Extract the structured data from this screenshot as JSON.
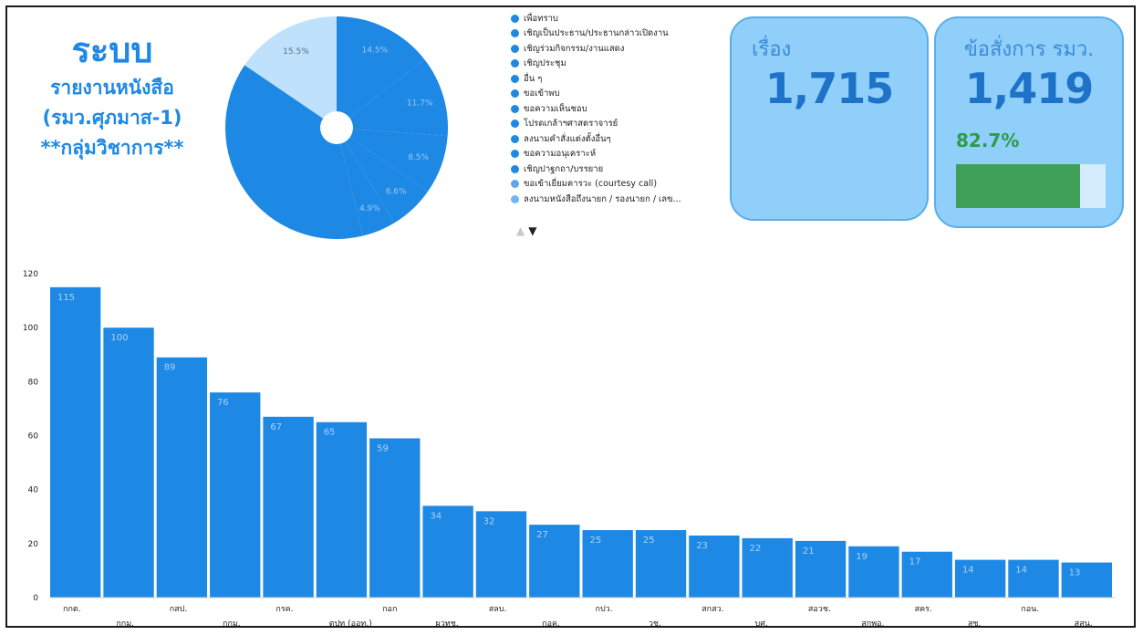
{
  "title": {
    "main": "ระบบ",
    "line1": "รายงานหนังสือ",
    "line2": "(รมว.ศุภมาส-1)",
    "line3": "**กลุ่มวิชาการ**"
  },
  "legend": {
    "items": [
      {
        "label": "เพื่อทราบ",
        "color": "#1e88e5"
      },
      {
        "label": "เชิญเป็นประธาน/ประธานกล่าวเปิดงาน",
        "color": "#1e88e5"
      },
      {
        "label": "เชิญร่วมกิจกรรม/งานแสดง",
        "color": "#1e88e5"
      },
      {
        "label": "เชิญประชุม",
        "color": "#1e88e5"
      },
      {
        "label": "อื่น ๆ",
        "color": "#1e88e5"
      },
      {
        "label": "ขอเข้าพบ",
        "color": "#1e88e5"
      },
      {
        "label": "ขอความเห็นชอบ",
        "color": "#1e88e5"
      },
      {
        "label": "โปรดเกล้าฯศาสตราจารย์",
        "color": "#1e88e5"
      },
      {
        "label": "ลงนามคำสั่งแต่งตั้งอื่นๆ",
        "color": "#1e88e5"
      },
      {
        "label": "ขอความอนุเคราะห์",
        "color": "#1e88e5"
      },
      {
        "label": "เชิญปาฐกถา/บรรยาย",
        "color": "#1e88e5"
      },
      {
        "label": "ขอเข้าเยี่ยมคารวะ (courtesy call)",
        "color": "#5da7ee"
      },
      {
        "label": "ลงนามหนังสือถึงนายก / รองนายก / เลข...",
        "color": "#6fb7f2"
      }
    ],
    "nav_prev": "▲",
    "nav_next": "▼"
  },
  "card_topics": {
    "label": "เรื่อง",
    "value": "1,715"
  },
  "card_orders": {
    "label": "ข้อสั่งการ รมว.",
    "value": "1,419",
    "percent_label": "82.7%",
    "progress": 0.827
  },
  "colors": {
    "primary": "#1e88e5",
    "pie_light": "#bfe1fb",
    "card_bg": "#8fcffa",
    "card_text": "#1e73c8",
    "progress_green": "#3f9e58"
  },
  "chart_data": [
    {
      "type": "pie",
      "donut_hole": true,
      "slices": [
        {
          "value": 15.5,
          "label": "15.5%",
          "color": "#bfe1fb"
        },
        {
          "value": 14.5,
          "label": "14.5%",
          "color": "#1e88e5"
        },
        {
          "value": 11.7,
          "label": "11.7%",
          "color": "#1e88e5"
        },
        {
          "value": 8.5,
          "label": "8.5%",
          "color": "#1e88e5"
        },
        {
          "value": 6.6,
          "label": "6.6%",
          "color": "#1e88e5"
        },
        {
          "value": 4.9,
          "label": "4.9%",
          "color": "#1e88e5"
        },
        {
          "value": 38.3,
          "label": "",
          "color": "#1e88e5"
        }
      ]
    },
    {
      "type": "bar",
      "categories": [
        "กกต.",
        "กกม.",
        "กสป.",
        "กกม.",
        "กรค.",
        "ตปท (ออท.)",
        "กอก",
        "ผวทช.",
        "สลบ.",
        "กอค.",
        "กปว.",
        "วช.",
        "สกสว.",
        "บศ.",
        "สอวช.",
        "สกพอ.",
        "สคร.",
        "สช.",
        "กอน.",
        "สสน."
      ],
      "values": [
        115,
        100,
        89,
        76,
        67,
        65,
        59,
        34,
        32,
        27,
        25,
        25,
        23,
        22,
        21,
        19,
        17,
        14,
        14,
        13
      ],
      "ylim": [
        0,
        120
      ],
      "yticks": [
        0,
        20,
        40,
        60,
        80,
        100,
        120
      ],
      "grid": false,
      "color": "#1e88e5"
    }
  ]
}
